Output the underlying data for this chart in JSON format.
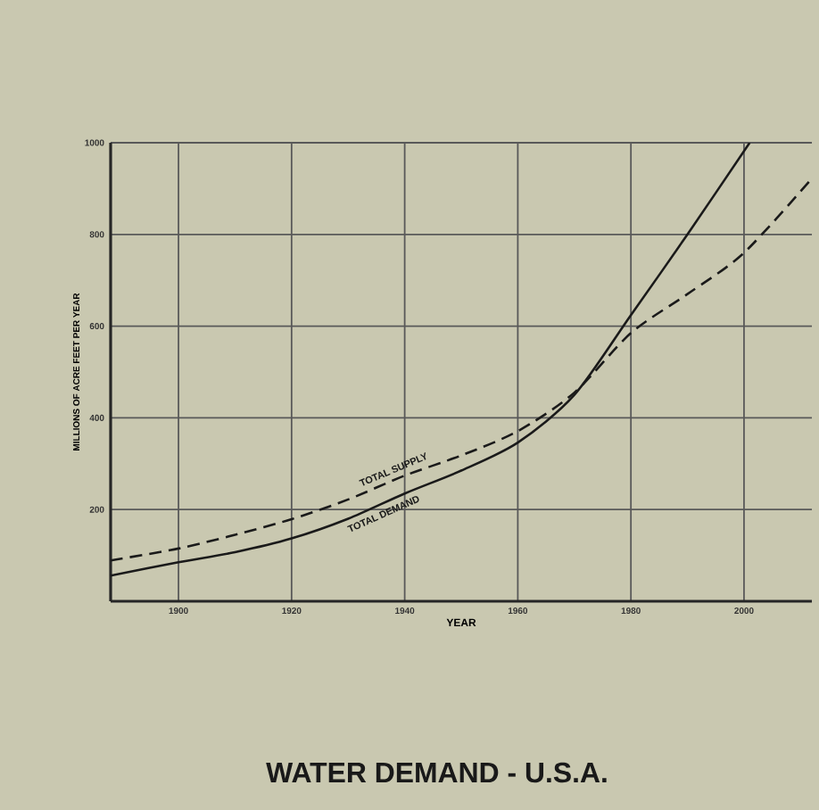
{
  "chart_data": {
    "type": "line",
    "title": "WATER DEMAND - U.S.A.",
    "xlabel": "YEAR",
    "ylabel": "MILLIONS OF ACRE FEET PER YEAR",
    "x": [
      1888,
      1900,
      1910,
      1920,
      1930,
      1940,
      1950,
      1960,
      1970,
      1980,
      1990,
      2001
    ],
    "series": [
      {
        "name": "TOTAL DEMAND",
        "color": "#1a1a1a",
        "line_style": "solid",
        "values": [
          56,
          85,
          107,
          137,
          180,
          235,
          285,
          346,
          450,
          624,
          800,
          1000
        ]
      },
      {
        "name": "TOTAL SUPPLY",
        "color": "#1a1a1a",
        "line_style": "dashed",
        "x": [
          1888,
          1900,
          1910,
          1920,
          1930,
          1940,
          1950,
          1960,
          1970,
          1980,
          1990,
          2000,
          2012
        ],
        "values": [
          89,
          115,
          145,
          179,
          222,
          274,
          318,
          371,
          455,
          585,
          670,
          760,
          922
        ]
      }
    ],
    "xlim": [
      1888,
      2012
    ],
    "ylim": [
      0,
      1000
    ],
    "xticks": [
      1900,
      1920,
      1940,
      1960,
      1980,
      2000
    ],
    "yticks": [
      200,
      400,
      600,
      800,
      1000
    ],
    "grid": true
  }
}
